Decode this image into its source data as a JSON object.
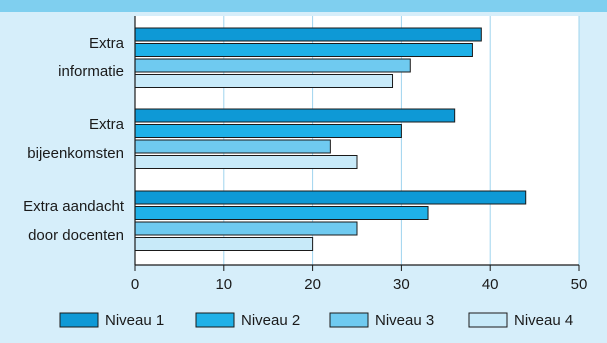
{
  "chart_data": {
    "type": "bar",
    "orientation": "horizontal",
    "title": "",
    "xlabel": "",
    "ylabel": "",
    "xlim": [
      0,
      50
    ],
    "x_ticks": [
      0,
      10,
      20,
      30,
      40,
      50
    ],
    "grid": true,
    "legend_position": "bottom",
    "categories": [
      [
        "Extra",
        "informatie"
      ],
      [
        "Extra",
        "bijeenkomsten"
      ],
      [
        "Extra aandacht",
        "door docenten"
      ]
    ],
    "series": [
      {
        "name": "Niveau 1",
        "color": "#0e99d6",
        "values": [
          39,
          36,
          44
        ]
      },
      {
        "name": "Niveau 2",
        "color": "#1fb1e8",
        "values": [
          38,
          30,
          33
        ]
      },
      {
        "name": "Niveau 3",
        "color": "#6fcaf0",
        "values": [
          31,
          22,
          25
        ]
      },
      {
        "name": "Niveau 4",
        "color": "#c8eaf9",
        "values": [
          29,
          25,
          20
        ]
      }
    ],
    "background_color": "#d6eefa",
    "plot_background_color": "#ffffff",
    "gridline_color": "#9fd4ee"
  }
}
